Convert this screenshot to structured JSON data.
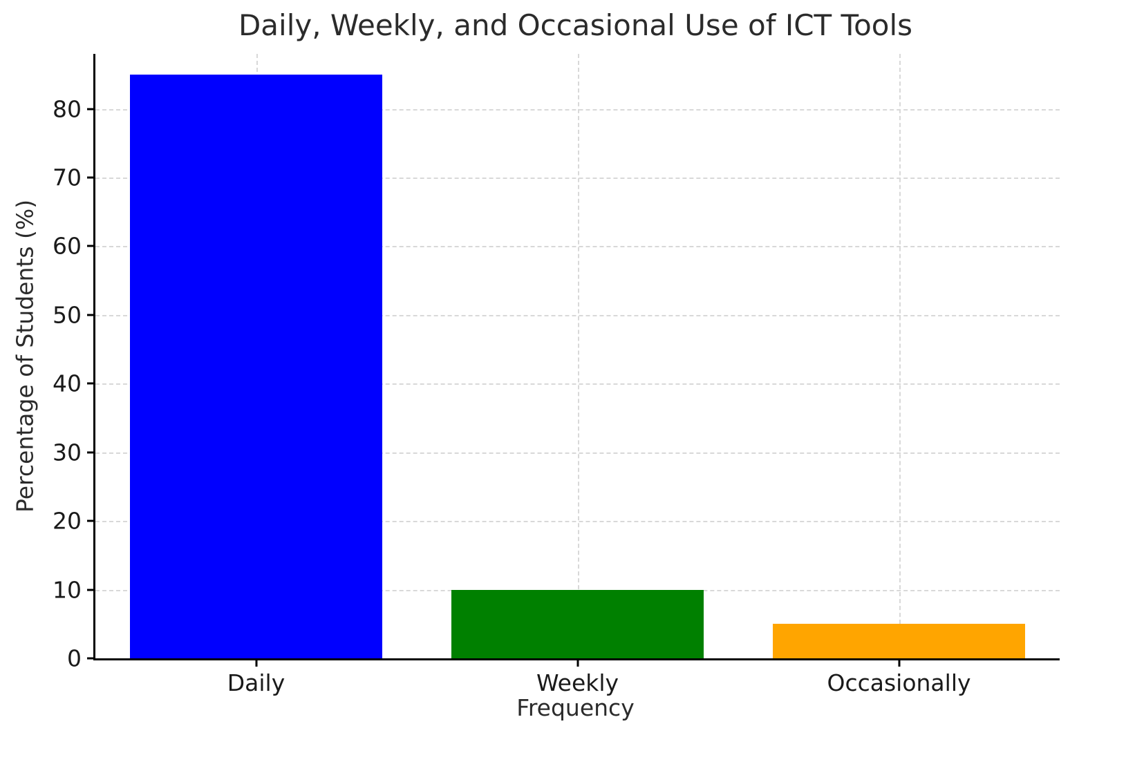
{
  "chart_data": {
    "type": "bar",
    "title": "Daily, Weekly, and Occasional Use of ICT Tools",
    "xlabel": "Frequency",
    "ylabel": "Percentage of Students (%)",
    "categories": [
      "Daily",
      "Weekly",
      "Occasionally"
    ],
    "values": [
      85,
      10,
      5
    ],
    "colors": [
      "#0000ff",
      "#008000",
      "#ffa500"
    ],
    "yticks": [
      0,
      10,
      20,
      30,
      40,
      50,
      60,
      70,
      80
    ],
    "ylim": [
      0,
      88
    ],
    "bar_fraction": 0.785,
    "grid": "dashed",
    "legend": "none"
  }
}
